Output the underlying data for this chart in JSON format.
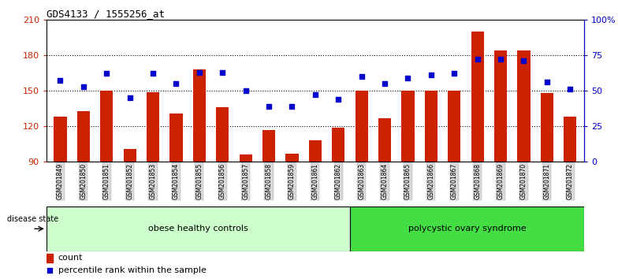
{
  "title": "GDS4133 / 1555256_at",
  "samples": [
    "GSM201849",
    "GSM201850",
    "GSM201851",
    "GSM201852",
    "GSM201853",
    "GSM201854",
    "GSM201855",
    "GSM201856",
    "GSM201857",
    "GSM201858",
    "GSM201859",
    "GSM201861",
    "GSM201862",
    "GSM201863",
    "GSM201864",
    "GSM201865",
    "GSM201866",
    "GSM201867",
    "GSM201868",
    "GSM201869",
    "GSM201870",
    "GSM201871",
    "GSM201872"
  ],
  "counts": [
    128,
    133,
    150,
    101,
    149,
    131,
    168,
    136,
    96,
    117,
    97,
    108,
    119,
    150,
    127,
    150,
    150,
    150,
    200,
    184,
    184,
    148,
    128
  ],
  "percentile_ranks": [
    57,
    53,
    62,
    45,
    62,
    55,
    63,
    63,
    50,
    39,
    39,
    47,
    44,
    60,
    55,
    59,
    61,
    62,
    72,
    72,
    71,
    56,
    51
  ],
  "group1_label": "obese healthy controls",
  "group2_label": "polycystic ovary syndrome",
  "group1_count": 13,
  "group2_count": 10,
  "bar_color": "#cc2200",
  "dot_color": "#0000cc",
  "background_color": "#ffffff",
  "group1_bg": "#ccffcc",
  "group2_bg": "#44dd44",
  "ylim_left": [
    90,
    210
  ],
  "yticks_left": [
    90,
    120,
    150,
    180,
    210
  ],
  "ylim_right": [
    0,
    100
  ],
  "yticks_right": [
    0,
    25,
    50,
    75,
    100
  ],
  "legend_count_label": "count",
  "legend_pct_label": "percentile rank within the sample",
  "disease_state_label": "disease state",
  "grid_yticks": [
    120,
    150,
    180
  ]
}
